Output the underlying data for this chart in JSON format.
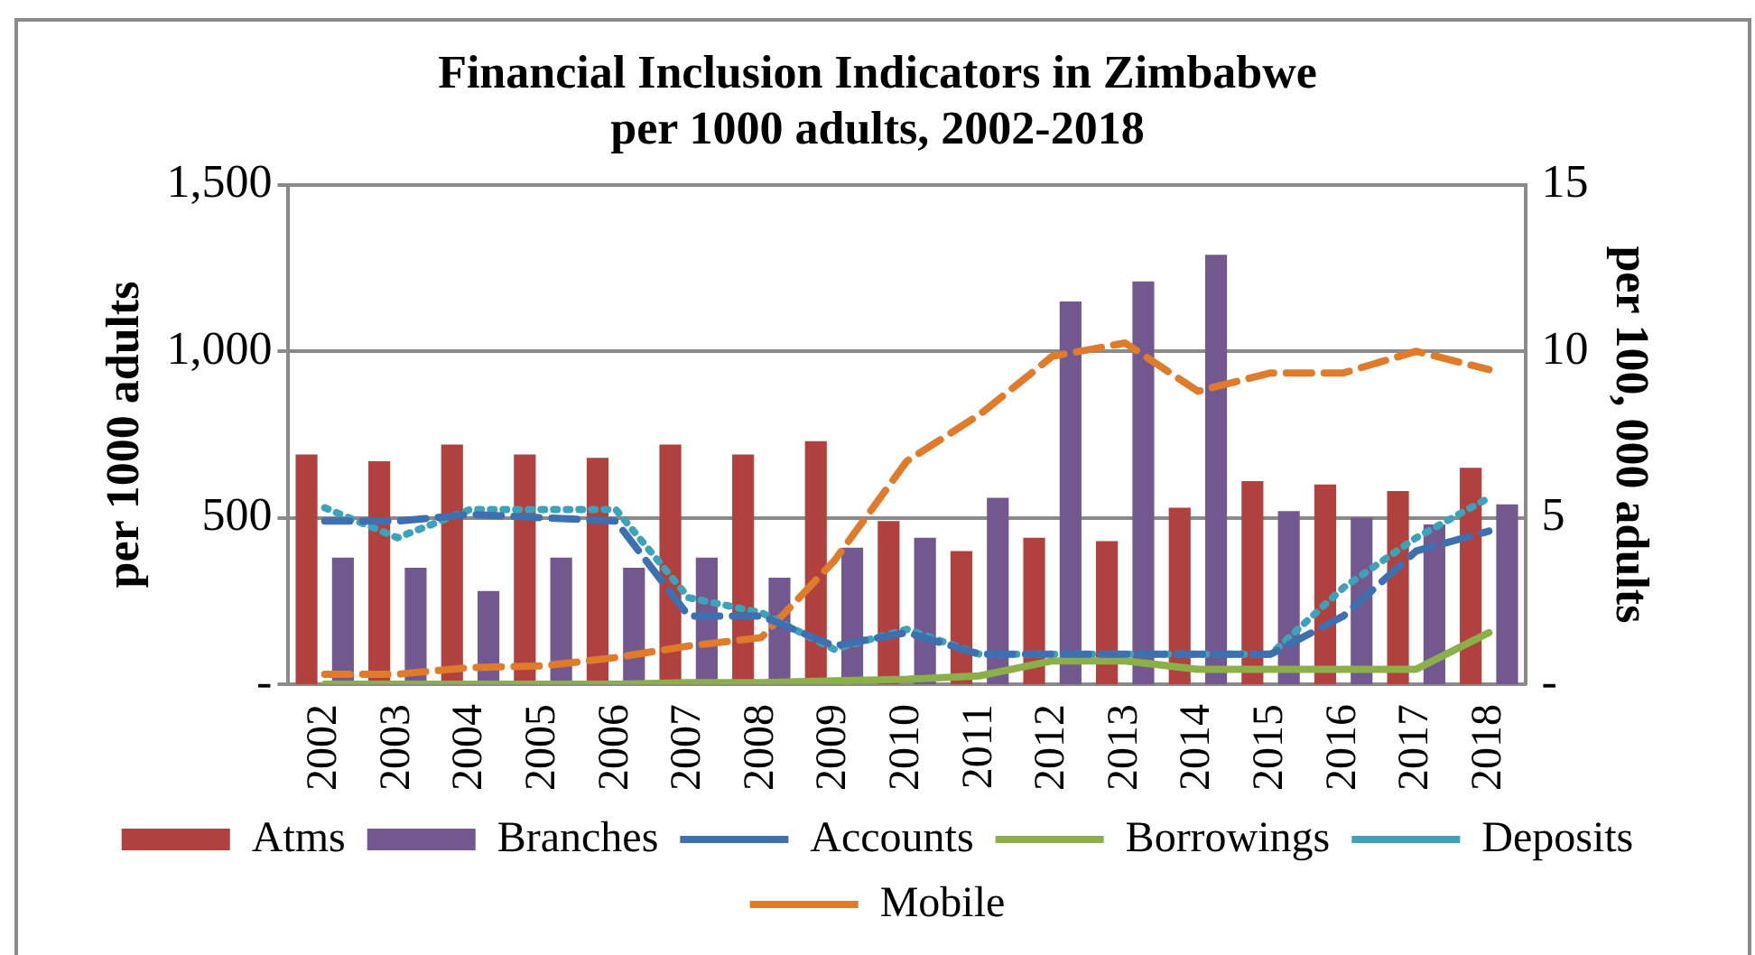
{
  "chart_data": {
    "type": "bar",
    "title": "Financial Inclusion Indicators in Zimbabwe per 1000 adults, 2002-2018",
    "ylabel": "per 1000 adults",
    "y2label": "per 100, 000 adults",
    "categories": [
      "2002",
      "2003",
      "2004",
      "2005",
      "2006",
      "2007",
      "2008",
      "2009",
      "2010",
      "2011",
      "2012",
      "2013",
      "2014",
      "2015",
      "2016",
      "2017",
      "2018"
    ],
    "series": [
      {
        "name": "Atms",
        "axis": "y2",
        "color": "#b0413e",
        "values": [
          6.9,
          6.7,
          7.2,
          6.9,
          6.8,
          7.2,
          6.9,
          7.3,
          4.9,
          4.0,
          4.4,
          4.3,
          5.3,
          6.1,
          6.0,
          5.8,
          6.5
        ]
      },
      {
        "name": "Branches",
        "axis": "y2",
        "color": "#73588f",
        "values": [
          3.8,
          3.5,
          2.8,
          3.8,
          3.5,
          3.8,
          3.2,
          4.1,
          4.4,
          5.6,
          11.5,
          12.1,
          12.9,
          5.2,
          5.0,
          4.8,
          5.4
        ]
      },
      {
        "name": "Accounts",
        "type": "line",
        "axis": "y",
        "color": "#3f6faf",
        "line_style": "dashed",
        "values": [
          490,
          490,
          510,
          500,
          490,
          205,
          205,
          115,
          155,
          90,
          90,
          90,
          90,
          90,
          205,
          400,
          460
        ]
      },
      {
        "name": "Borrowings",
        "type": "line",
        "axis": "y",
        "color": "#8caf4a",
        "line_style": "solid",
        "values": [
          0,
          0,
          0,
          0,
          0,
          5,
          5,
          10,
          15,
          25,
          70,
          70,
          45,
          45,
          45,
          45,
          155
        ]
      },
      {
        "name": "Deposits",
        "type": "line",
        "axis": "y",
        "color": "#3ea2b9",
        "line_style": "dotted",
        "values": [
          530,
          440,
          525,
          525,
          525,
          260,
          215,
          105,
          165,
          90,
          90,
          90,
          90,
          90,
          290,
          440,
          560
        ]
      },
      {
        "name": "Mobile",
        "type": "line",
        "axis": "y",
        "color": "#e07b2c",
        "line_style": "dashed",
        "values": [
          30,
          30,
          50,
          55,
          80,
          115,
          140,
          370,
          670,
          810,
          985,
          1025,
          880,
          935,
          935,
          1000,
          945
        ]
      }
    ],
    "ylim": [
      0,
      1500
    ],
    "yticks": [
      {
        "value": 0,
        "label": "-"
      },
      500,
      {
        "value": 1000,
        "label": "1,000"
      },
      {
        "value": 1500,
        "label": "1,500"
      }
    ],
    "y2lim": [
      0,
      15
    ],
    "y2ticks": [
      {
        "value": 0,
        "label": "-"
      },
      5,
      10,
      15
    ],
    "grid": "y",
    "legend": "bottom",
    "marker": "none"
  }
}
